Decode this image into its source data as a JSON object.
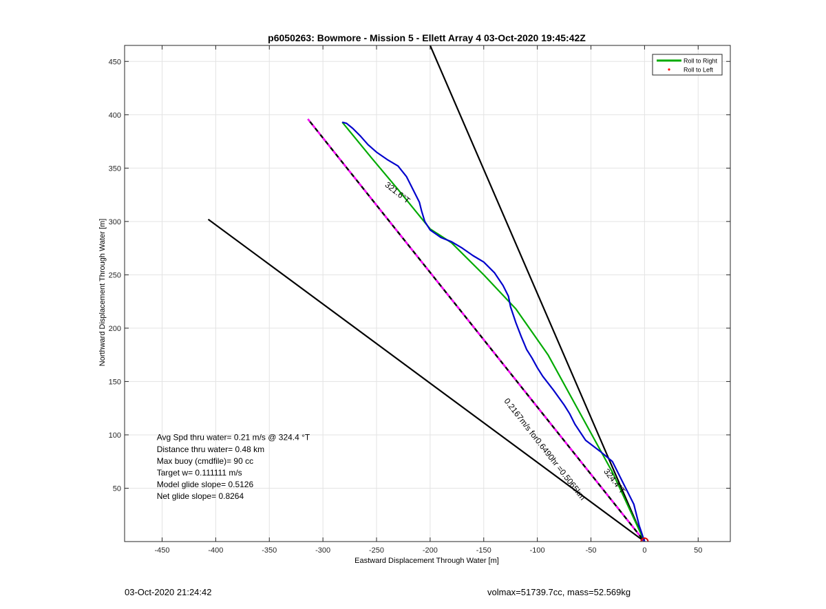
{
  "chart_data": {
    "type": "line",
    "title": "p6050263: Bowmore - Mission 5 - Ellett Array 4 03-Oct-2020 19:45:42Z",
    "xlabel": "Eastward Displacement Through Water [m]",
    "ylabel": "Northward Displacement Through Water [m]",
    "xlim": [
      -485,
      80
    ],
    "ylim": [
      0,
      465
    ],
    "xticks": [
      -450,
      -400,
      -350,
      -300,
      -250,
      -200,
      -150,
      -100,
      -50,
      0,
      50
    ],
    "yticks": [
      50,
      100,
      150,
      200,
      250,
      300,
      350,
      400,
      450
    ],
    "grid": true,
    "legend": {
      "placement": "top-right",
      "entries": [
        {
          "label": "Roll to Right",
          "color": "#00aa00",
          "style": "line"
        },
        {
          "label": "Roll to Left",
          "color": "#ff0000",
          "style": "dot"
        }
      ]
    },
    "series": [
      {
        "color": "#000000",
        "style": "solid",
        "x": [
          0,
          -200
        ],
        "y": [
          0,
          465
        ]
      },
      {
        "color": "#000000",
        "style": "solid",
        "x": [
          0,
          -407
        ],
        "y": [
          0,
          302
        ]
      },
      {
        "color": "#000000",
        "style": "dashed-magenta",
        "x": [
          0,
          -314
        ],
        "y": [
          0,
          396
        ]
      },
      {
        "color": "#00aa00",
        "style": "solid",
        "x": [
          0,
          -30,
          -60,
          -90,
          -120,
          -150,
          -180,
          -200,
          -230,
          -255,
          -282
        ],
        "y": [
          0,
          65,
          120,
          175,
          218,
          250,
          280,
          293,
          330,
          360,
          393
        ]
      },
      {
        "color": "#0000cc",
        "style": "solid",
        "x": [
          0,
          -5,
          -10,
          -20,
          -30,
          -42,
          -55,
          -65,
          -70,
          -75,
          -85,
          -95,
          -100,
          -105,
          -110,
          -115,
          -120,
          -125,
          -127,
          -132,
          -140,
          -150,
          -160,
          -170,
          -180,
          -190,
          -200,
          -205,
          -208,
          -210,
          -215,
          -222,
          -230,
          -240,
          -250,
          -258,
          -265,
          -272,
          -278,
          -282
        ],
        "y": [
          0,
          15,
          35,
          55,
          75,
          85,
          95,
          110,
          120,
          128,
          142,
          155,
          163,
          172,
          180,
          192,
          205,
          220,
          230,
          240,
          252,
          262,
          268,
          275,
          281,
          285,
          292,
          300,
          310,
          318,
          328,
          342,
          352,
          358,
          365,
          372,
          380,
          387,
          392,
          393
        ]
      }
    ],
    "annotations": [
      {
        "text": "321.6°T",
        "x": -232,
        "y": 325,
        "rotation_deg": 38.4
      },
      {
        "text": "0.2167m/s for0.6490hr =0.5065km",
        "x": -95,
        "y": 85,
        "rotation_deg": 52
      },
      {
        "text": "324.4°T",
        "x": -30,
        "y": 55,
        "rotation_deg": 52
      },
      {
        "text": "Avg Spd thru water=  0.21 m/s @ 324.4 °T",
        "x": -455,
        "y": 95
      },
      {
        "text": "Distance thru water=  0.48 km",
        "x": -455,
        "y": 84
      },
      {
        "text": "Max buoy (cmdfile)= 90 cc",
        "x": -455,
        "y": 73
      },
      {
        "text": "Target w= 0.111111 m/s",
        "x": -455,
        "y": 62
      },
      {
        "text": "Model glide slope= 0.5126",
        "x": -455,
        "y": 51
      },
      {
        "text": "Net glide slope= 0.8264",
        "x": -455,
        "y": 40
      }
    ],
    "marker": {
      "x": 0,
      "y": 0,
      "style": "circle",
      "color": "#dd0000"
    }
  },
  "footer": {
    "date": "03-Oct-2020 21:24:42",
    "info": "volmax=51739.7cc, mass=52.569kg"
  }
}
